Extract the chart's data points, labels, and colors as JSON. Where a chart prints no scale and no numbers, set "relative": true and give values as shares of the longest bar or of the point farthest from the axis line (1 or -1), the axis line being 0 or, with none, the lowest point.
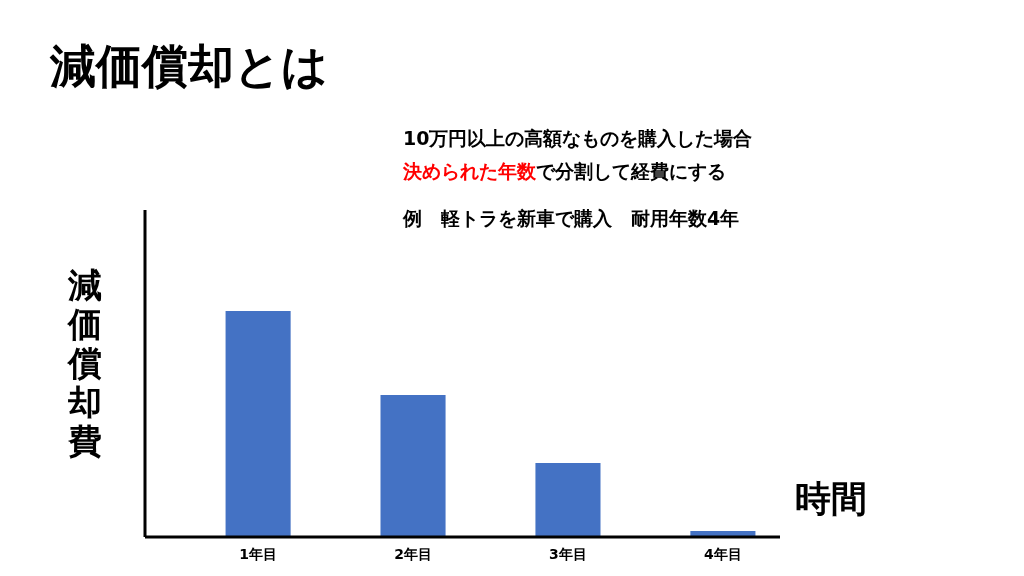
{
  "chart_data": {
    "type": "bar",
    "title": "減価償却とは",
    "xlabel": "時間",
    "ylabel": "減価償却費",
    "annotations": [
      "10万円以上の高額なものを購入した場合",
      "決められた年数",
      "で分割して経費にする",
      "例　軽トラを新車で購入　耐用年数4年"
    ],
    "categories": [
      "1年目",
      "2年目",
      "3年目",
      "4年目"
    ],
    "values": [
      1,
      0.628,
      0.327,
      0.027
    ],
    "color": "#4472c4",
    "relative": true,
    "grid": false
  }
}
